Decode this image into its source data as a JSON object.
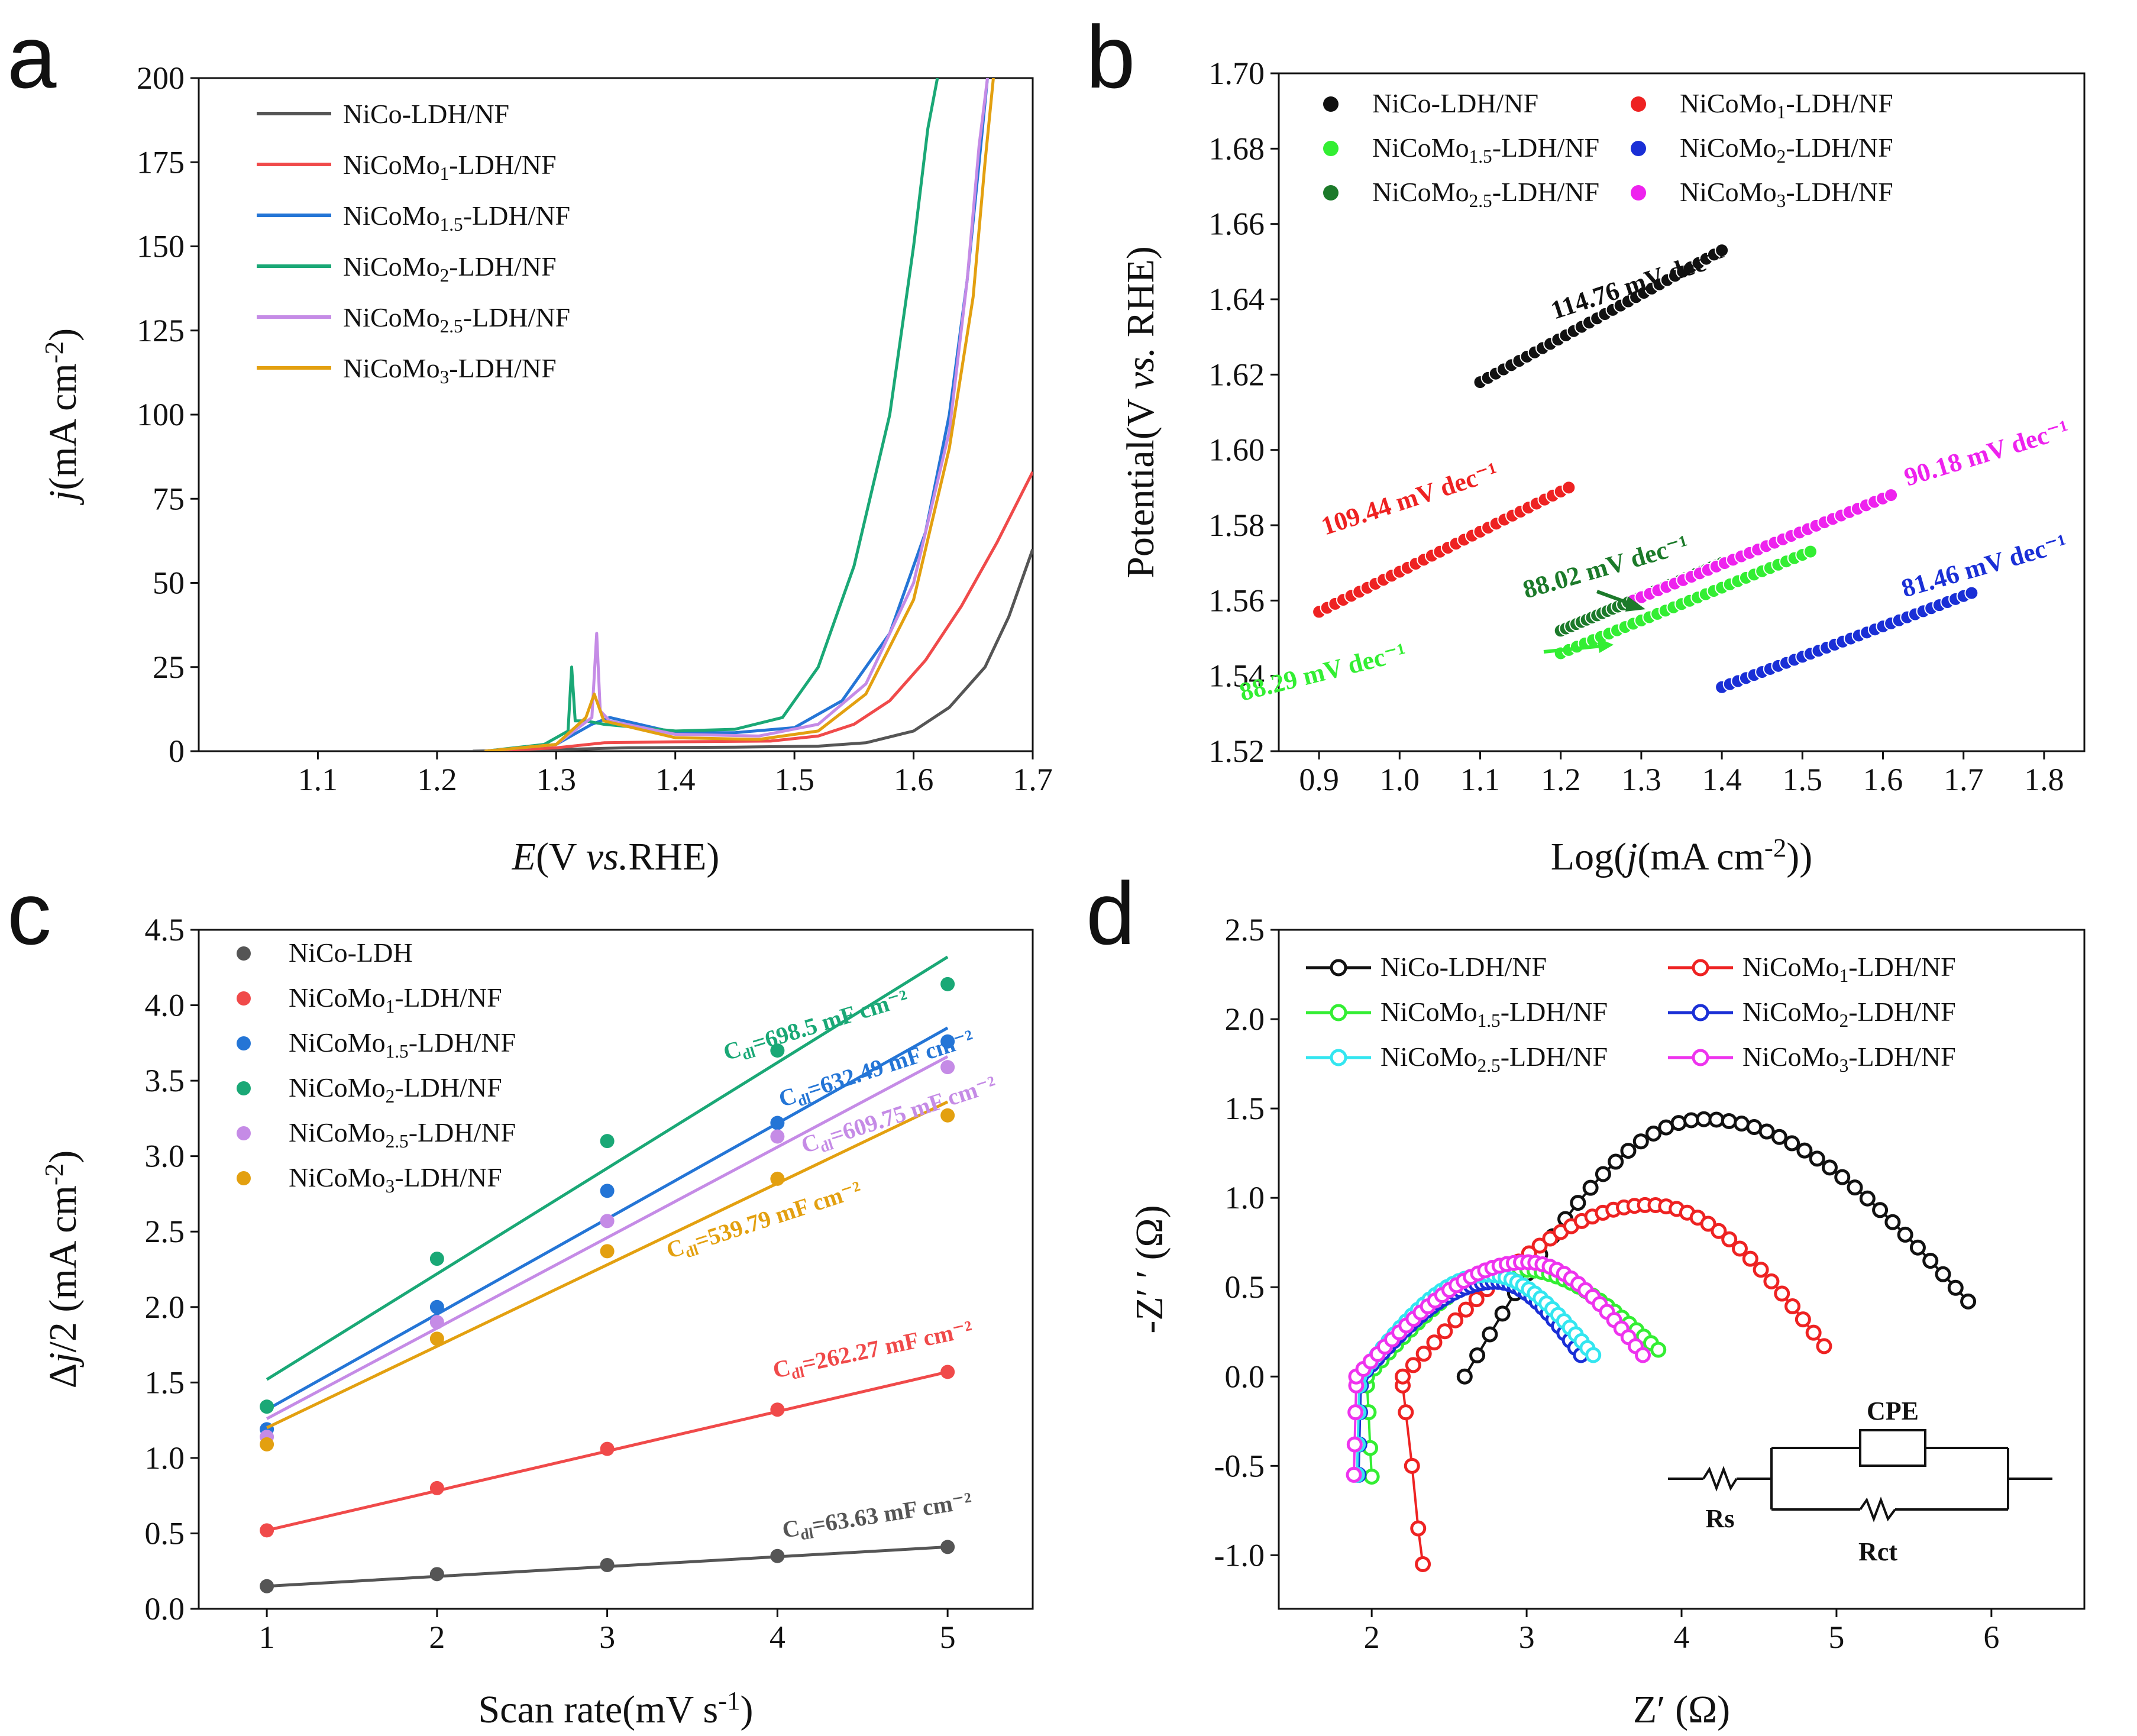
{
  "panels": [
    {
      "id": "a",
      "letter": "a",
      "chart_data": {
        "type": "line",
        "title": "",
        "xlabel_parts": [
          "E",
          "(V ",
          "vs.",
          "RHE)"
        ],
        "ylabel_parts": [
          "j",
          "(mA cm",
          "-2",
          ")"
        ],
        "xlim": [
          1.0,
          1.7
        ],
        "ylim": [
          0,
          200
        ],
        "xticks": [
          1.1,
          1.2,
          1.3,
          1.4,
          1.5,
          1.6,
          1.7
        ],
        "xtick_labels": [
          "1.1",
          "1.2",
          "1.3",
          "1.4",
          "1.5",
          "1.6",
          "1.7"
        ],
        "yticks": [
          0,
          25,
          50,
          75,
          100,
          125,
          150,
          175,
          200
        ],
        "ytick_labels": [
          "0",
          "25",
          "50",
          "75",
          "100",
          "125",
          "150",
          "175",
          "200"
        ],
        "legend_position": "top-left",
        "series": [
          {
            "name": "NiCo-LDH/NF",
            "label": [
              "NiCo-LDH/NF",
              "",
              ""
            ],
            "color": "#555555",
            "x": [
              1.23,
              1.3,
              1.36,
              1.45,
              1.52,
              1.56,
              1.6,
              1.63,
              1.66,
              1.68,
              1.7
            ],
            "y": [
              0,
              0.5,
              1,
              1.2,
              1.5,
              2.5,
              6,
              13,
              25,
              40,
              60
            ]
          },
          {
            "name": "NiCoMo1-LDH/NF",
            "label": [
              "NiCoMo",
              "1",
              "-LDH/NF"
            ],
            "color": "#f04a4a",
            "x": [
              1.24,
              1.3,
              1.34,
              1.4,
              1.48,
              1.52,
              1.55,
              1.58,
              1.61,
              1.64,
              1.67,
              1.7
            ],
            "y": [
              0,
              1,
              2.5,
              2.8,
              3,
              4.5,
              8,
              15,
              27,
              43,
              62,
              83
            ]
          },
          {
            "name": "NiCoMo1.5-LDH/NF",
            "label": [
              "NiCoMo",
              "1.5",
              "-LDH/NF"
            ],
            "color": "#2475d6",
            "x": [
              1.24,
              1.3,
              1.33,
              1.345,
              1.4,
              1.45,
              1.5,
              1.54,
              1.58,
              1.61,
              1.63,
              1.645,
              1.655,
              1.662
            ],
            "y": [
              0,
              2,
              8,
              10,
              5.5,
              5.5,
              7,
              15,
              35,
              65,
              100,
              140,
              175,
              200
            ]
          },
          {
            "name": "NiCoMo2-LDH/NF",
            "label": [
              "NiCoMo",
              "2",
              "-LDH/NF"
            ],
            "color": "#1aa876",
            "x": [
              1.24,
              1.29,
              1.31,
              1.313,
              1.316,
              1.325,
              1.34,
              1.4,
              1.45,
              1.49,
              1.52,
              1.55,
              1.58,
              1.6,
              1.612,
              1.62
            ],
            "y": [
              0,
              2,
              6,
              25,
              9,
              9,
              8,
              6,
              6.5,
              10,
              25,
              55,
              100,
              150,
              185,
              200
            ]
          },
          {
            "name": "NiCoMo2.5-LDH/NF",
            "label": [
              "NiCoMo",
              "2.5",
              "-LDH/NF"
            ],
            "color": "#c58be6",
            "x": [
              1.24,
              1.3,
              1.33,
              1.334,
              1.337,
              1.345,
              1.4,
              1.47,
              1.52,
              1.56,
              1.6,
              1.63,
              1.645,
              1.655,
              1.662
            ],
            "y": [
              0,
              2,
              10,
              35,
              12,
              9,
              5,
              4.5,
              8,
              20,
              50,
              95,
              140,
              180,
              200
            ]
          },
          {
            "name": "NiCoMo3-LDH/NF",
            "label": [
              "NiCoMo",
              "3",
              "-LDH/NF"
            ],
            "color": "#e3a010",
            "x": [
              1.24,
              1.3,
              1.325,
              1.332,
              1.34,
              1.4,
              1.47,
              1.52,
              1.56,
              1.6,
              1.63,
              1.65,
              1.66,
              1.667
            ],
            "y": [
              0,
              2,
              10,
              17,
              9,
              4,
              3.5,
              6,
              17,
              45,
              90,
              135,
              175,
              200
            ]
          }
        ]
      }
    },
    {
      "id": "b",
      "letter": "b",
      "chart_data": {
        "type": "scatter",
        "title": "",
        "xlabel_parts": [
          "Log(",
          "j",
          "(mA cm",
          "-2",
          "))"
        ],
        "ylabel_parts": [
          "Potential(V ",
          "vs.",
          " RHE)"
        ],
        "xlim": [
          0.85,
          1.85
        ],
        "ylim": [
          1.52,
          1.7
        ],
        "xticks": [
          0.9,
          1.0,
          1.1,
          1.2,
          1.3,
          1.4,
          1.5,
          1.6,
          1.7,
          1.8
        ],
        "xtick_labels": [
          "0.9",
          "1.0",
          "1.1",
          "1.2",
          "1.3",
          "1.4",
          "1.5",
          "1.6",
          "1.7",
          "1.8"
        ],
        "yticks": [
          1.52,
          1.54,
          1.56,
          1.58,
          1.6,
          1.62,
          1.64,
          1.66,
          1.68,
          1.7
        ],
        "ytick_labels": [
          "1.52",
          "1.54",
          "1.56",
          "1.58",
          "1.60",
          "1.62",
          "1.64",
          "1.66",
          "1.68",
          "1.70"
        ],
        "legend_position": "top",
        "series": [
          {
            "name": "NiCo-LDH/NF",
            "label": [
              "NiCo-LDH/NF",
              "",
              ""
            ],
            "color": "#111111",
            "x_range": [
              1.1,
              1.4
            ],
            "y_range": [
              1.618,
              1.653
            ],
            "slope_label": "114.76 mV dec⁻¹"
          },
          {
            "name": "NiCoMo1-LDH/NF",
            "label": [
              "NiCoMo",
              "1",
              "-LDH/NF"
            ],
            "color": "#ee2222",
            "x_range": [
              0.9,
              1.21
            ],
            "y_range": [
              1.557,
              1.59
            ],
            "slope_label": "109.44 mV dec⁻¹"
          },
          {
            "name": "NiCoMo1.5-LDH/NF",
            "label": [
              "NiCoMo",
              "1.5",
              "-LDH/NF"
            ],
            "color": "#33ee33",
            "x_range": [
              1.2,
              1.51
            ],
            "y_range": [
              1.546,
              1.573
            ],
            "slope_label": "88.29 mV dec⁻¹"
          },
          {
            "name": "NiCoMo2-LDH/NF",
            "label": [
              "NiCoMo",
              "2",
              "-LDH/NF"
            ],
            "color": "#1a2fd6",
            "x_range": [
              1.4,
              1.71
            ],
            "y_range": [
              1.537,
              1.562
            ],
            "slope_label": "81.46 mV dec⁻¹"
          },
          {
            "name": "NiCoMo2.5-LDH/NF",
            "label": [
              "NiCoMo",
              "2.5",
              "-LDH/NF"
            ],
            "color": "#1c7a2a",
            "x_range": [
              1.2,
              1.4
            ],
            "y_range": [
              1.552,
              1.57
            ],
            "slope_label": "88.02 mV dec⁻¹"
          },
          {
            "name": "NiCoMo3-LDH/NF",
            "label": [
              "NiCoMo",
              "3",
              "-LDH/NF"
            ],
            "color": "#ee22ee",
            "x_range": [
              1.29,
              1.61
            ],
            "y_range": [
              1.56,
              1.588
            ],
            "slope_label": "90.18 mV dec⁻¹"
          }
        ]
      }
    },
    {
      "id": "c",
      "letter": "c",
      "chart_data": {
        "type": "scatter",
        "title": "",
        "xlabel_parts": [
          "Scan rate(mV s",
          "-1",
          ")"
        ],
        "ylabel_parts": [
          "Δ",
          "j",
          "/2 (mA cm",
          "-2",
          ")"
        ],
        "xlim": [
          0.6,
          5.5
        ],
        "ylim": [
          0,
          4.5
        ],
        "xticks": [
          1,
          2,
          3,
          4,
          5
        ],
        "xtick_labels": [
          "1",
          "2",
          "3",
          "4",
          "5"
        ],
        "yticks": [
          0,
          0.5,
          1,
          1.5,
          2,
          2.5,
          3,
          3.5,
          4,
          4.5
        ],
        "ytick_labels": [
          "0.0",
          "0.5",
          "1.0",
          "1.5",
          "2.0",
          "2.5",
          "3.0",
          "3.5",
          "4.0",
          "4.5"
        ],
        "legend_position": "top-left",
        "x": [
          1,
          2,
          3,
          4,
          5
        ],
        "series": [
          {
            "name": "NiCo-LDH",
            "label": [
              "NiCo-LDH",
              "",
              ""
            ],
            "color": "#555555",
            "values": [
              0.15,
              0.23,
              0.29,
              0.35,
              0.41
            ],
            "fit": [
              0.15,
              0.41
            ],
            "cdl_label": "=63.63 mF cm⁻²"
          },
          {
            "name": "NiCoMo1-LDH/NF",
            "label": [
              "NiCoMo",
              "1",
              "-LDH/NF"
            ],
            "color": "#f04a4a",
            "values": [
              0.52,
              0.8,
              1.06,
              1.32,
              1.57
            ],
            "fit": [
              0.52,
              1.57
            ],
            "cdl_label": "=262.27 mF cm⁻²"
          },
          {
            "name": "NiCoMo1.5-LDH/NF",
            "label": [
              "NiCoMo",
              "1.5",
              "-LDH/NF"
            ],
            "color": "#2475d6",
            "values": [
              1.19,
              2.0,
              2.77,
              3.22,
              3.76
            ],
            "fit": [
              1.32,
              3.85
            ],
            "cdl_label": "=632.49 mF cm⁻²"
          },
          {
            "name": "NiCoMo2-LDH/NF",
            "label": [
              "NiCoMo",
              "2",
              "-LDH/NF"
            ],
            "color": "#1aa876",
            "values": [
              1.34,
              2.32,
              3.1,
              3.7,
              4.14
            ],
            "fit": [
              1.52,
              4.32
            ],
            "cdl_label": "=698.5 mF cm⁻²"
          },
          {
            "name": "NiCoMo2.5-LDH/NF",
            "label": [
              "NiCoMo",
              "2.5",
              "-LDH/NF"
            ],
            "color": "#c58be6",
            "values": [
              1.14,
              1.9,
              2.57,
              3.13,
              3.59
            ],
            "fit": [
              1.26,
              3.66
            ],
            "cdl_label": "=609.75 mF cm⁻²"
          },
          {
            "name": "NiCoMo3-LDH/NF",
            "label": [
              "NiCoMo",
              "3",
              "-LDH/NF"
            ],
            "color": "#e3a010",
            "values": [
              1.09,
              1.79,
              2.37,
              2.85,
              3.27
            ],
            "fit": [
              1.2,
              3.36
            ],
            "cdl_label": "=539.79 mF cm⁻²"
          }
        ]
      }
    },
    {
      "id": "d",
      "letter": "d",
      "chart_data": {
        "type": "scatter",
        "title": "",
        "xlabel_parts": [
          "Z′  (Ω)"
        ],
        "ylabel_parts": [
          "-Z′  ′  (Ω)"
        ],
        "xlim": [
          1.4,
          6.6
        ],
        "ylim": [
          -1.3,
          2.5
        ],
        "xticks": [
          2,
          3,
          4,
          5,
          6
        ],
        "xtick_labels": [
          "2",
          "3",
          "4",
          "5",
          "6"
        ],
        "yticks": [
          -1.0,
          -0.5,
          0.0,
          0.5,
          1.0,
          1.5,
          2.0,
          2.5
        ],
        "ytick_labels": [
          "-1.0",
          "-0.5",
          "0.0",
          "0.5",
          "1.0",
          "1.5",
          "2.0",
          "2.5"
        ],
        "legend_position": "top",
        "series": [
          {
            "name": "NiCo-LDH/NF",
            "label": [
              "NiCo-LDH/NF",
              "",
              ""
            ],
            "color": "#111111",
            "arc": {
              "x_start": 2.6,
              "x_end": 5.85,
              "peak_x": 4.15,
              "peak_y": 1.44,
              "end_y": 0.42
            }
          },
          {
            "name": "NiCoMo1-LDH/NF",
            "label": [
              "NiCoMo",
              "1",
              "-LDH/NF"
            ],
            "color": "#ee2222",
            "arc": {
              "x_start": 2.2,
              "x_end": 4.92,
              "peak_x": 3.8,
              "peak_y": 0.96,
              "end_y": 0.17
            },
            "tail": {
              "x": [
                2.2,
                2.22,
                2.26,
                2.3,
                2.33
              ],
              "y": [
                -0.05,
                -0.2,
                -0.5,
                -0.85,
                -1.05
              ]
            }
          },
          {
            "name": "NiCoMo1.5-LDH/NF",
            "label": [
              "NiCoMo",
              "1.5",
              "-LDH/NF"
            ],
            "color": "#33ee33",
            "arc": {
              "x_start": 1.97,
              "x_end": 3.85,
              "peak_x": 2.95,
              "peak_y": 0.6,
              "end_y": 0.15
            },
            "tail": {
              "x": [
                1.97,
                1.98,
                1.99,
                2.0
              ],
              "y": [
                -0.05,
                -0.2,
                -0.4,
                -0.56
              ]
            }
          },
          {
            "name": "NiCoMo2-LDH/NF",
            "label": [
              "NiCoMo",
              "2",
              "-LDH/NF"
            ],
            "color": "#1a2fd6",
            "arc": {
              "x_start": 1.93,
              "x_end": 3.35,
              "peak_x": 2.8,
              "peak_y": 0.53,
              "end_y": 0.12
            },
            "tail": {
              "x": [
                1.93,
                1.925,
                1.92,
                1.915
              ],
              "y": [
                -0.05,
                -0.2,
                -0.38,
                -0.55
              ]
            }
          },
          {
            "name": "NiCoMo2.5-LDH/NF",
            "label": [
              "NiCoMo",
              "2.5",
              "-LDH/NF"
            ],
            "color": "#33e6f0",
            "arc": {
              "x_start": 1.92,
              "x_end": 3.43,
              "peak_x": 2.75,
              "peak_y": 0.57,
              "end_y": 0.12
            },
            "tail": {
              "x": [
                1.92,
                1.915,
                1.91,
                1.905
              ],
              "y": [
                -0.05,
                -0.2,
                -0.38,
                -0.55
              ]
            }
          },
          {
            "name": "NiCoMo3-LDH/NF",
            "label": [
              "NiCoMo",
              "3",
              "-LDH/NF"
            ],
            "color": "#ee33ee",
            "arc": {
              "x_start": 1.9,
              "x_end": 3.75,
              "peak_x": 3.0,
              "peak_y": 0.64,
              "end_y": 0.12
            },
            "tail": {
              "x": [
                1.9,
                1.895,
                1.89,
                1.885
              ],
              "y": [
                -0.05,
                -0.2,
                -0.38,
                -0.55
              ]
            }
          }
        ],
        "circuit": {
          "rs": "Rs",
          "cpe": "CPE",
          "rct": "Rct"
        }
      }
    }
  ],
  "annotations": {
    "cdl_prefix": "C",
    "cdl_sub": "dl"
  }
}
